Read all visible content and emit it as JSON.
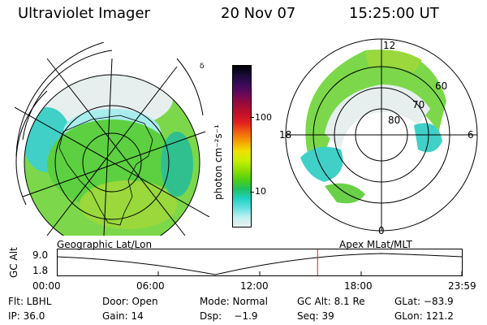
{
  "header": {
    "title": "Ultraviolet Imager",
    "date": "20 Nov 07",
    "time": "15:25:00 UT"
  },
  "colorbar": {
    "unit_label": "photon cm⁻²s⁻¹",
    "ticks": [
      "100",
      "10"
    ],
    "colors": [
      "#000000",
      "#1a0a3a",
      "#3b0a5a",
      "#6a0a5a",
      "#9a0a3a",
      "#c0102a",
      "#e02020",
      "#f06010",
      "#f5a000",
      "#f0e000",
      "#c8f000",
      "#90e000",
      "#50d010",
      "#20c060",
      "#20d0c0",
      "#60e0e0",
      "#c0f0f0",
      "#e8f0f0"
    ]
  },
  "left_map": {
    "label": "Geographic Lat/Lon",
    "tick": "δ"
  },
  "right_map": {
    "label": "Apex MLat/MLT",
    "mlt_labels": {
      "top": "12",
      "left": "18",
      "right": "6",
      "bottom": "0"
    },
    "lat_labels": [
      "60",
      "70",
      "80"
    ]
  },
  "altitude_plot": {
    "axis_label": "GC Alt",
    "y_ticks": [
      "9.0",
      "1.8"
    ],
    "x_ticks": [
      "00:00",
      "06:00",
      "12:00",
      "18:00",
      "23:59"
    ],
    "marker_time": "15:25",
    "marker_color": "#e02020"
  },
  "info": {
    "row1": [
      {
        "text": "Flt: LBHL"
      },
      {
        "text": "Door: Open"
      },
      {
        "text": "Mode: Normal"
      },
      {
        "text": "GC Alt: 8.1 Re"
      },
      {
        "text": "GLat: −83.9"
      }
    ],
    "row2": [
      {
        "text": "IP: 36.0"
      },
      {
        "text": "Gain: 14"
      },
      {
        "text": "Dsp:    −1.9"
      },
      {
        "text": "Seq: 39"
      },
      {
        "text": "GLon: 121.2"
      }
    ]
  }
}
